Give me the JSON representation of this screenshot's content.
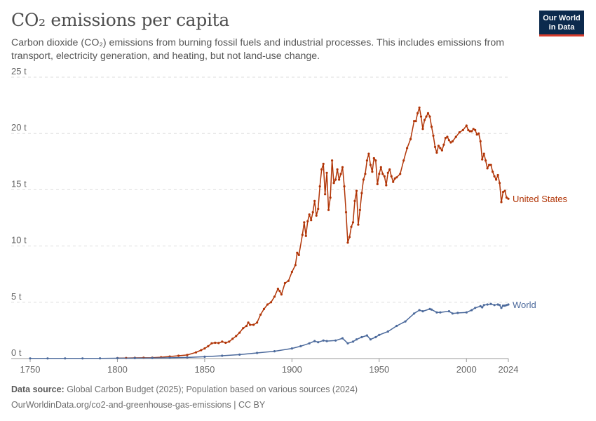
{
  "header": {
    "title": "CO₂ emissions per capita",
    "subtitle": "Carbon dioxide (CO₂) emissions from burning fossil fuels and industrial processes. This includes emissions from transport, electricity generation, and heating, but not land-use change."
  },
  "logo": {
    "line1": "Our World",
    "line2": "in Data"
  },
  "footer": {
    "source_label": "Data source:",
    "source_text": "Global Carbon Budget (2025); Population based on various sources (2024)",
    "url_line": "OurWorldinData.org/co2-and-greenhouse-gas-emissions | CC BY"
  },
  "colors": {
    "us": "#b13507",
    "world": "#4c6a9c",
    "grid": "#dddddd",
    "axis": "#999999"
  },
  "chart_data": {
    "type": "line",
    "title": "CO₂ emissions per capita",
    "xlim": [
      1750,
      2024
    ],
    "ylim": [
      0,
      25
    ],
    "grid": true,
    "y_ticks": [
      0,
      5,
      10,
      15,
      20,
      25
    ],
    "y_tick_labels": [
      "0 t",
      "5 t",
      "10 t",
      "15 t",
      "20 t",
      "25 t"
    ],
    "x_ticks": [
      1750,
      1800,
      1850,
      1900,
      1950,
      2000,
      2024
    ],
    "x_tick_labels": [
      "1750",
      "1800",
      "1850",
      "1900",
      "1950",
      "2000",
      "2024"
    ],
    "series": [
      {
        "name": "United States",
        "color": "#b13507",
        "points": [
          [
            1800,
            0.04
          ],
          [
            1805,
            0.05
          ],
          [
            1810,
            0.06
          ],
          [
            1815,
            0.07
          ],
          [
            1820,
            0.08
          ],
          [
            1825,
            0.12
          ],
          [
            1830,
            0.18
          ],
          [
            1835,
            0.25
          ],
          [
            1840,
            0.32
          ],
          [
            1845,
            0.55
          ],
          [
            1848,
            0.75
          ],
          [
            1850,
            0.9
          ],
          [
            1852,
            1.1
          ],
          [
            1854,
            1.35
          ],
          [
            1856,
            1.4
          ],
          [
            1858,
            1.38
          ],
          [
            1860,
            1.5
          ],
          [
            1862,
            1.4
          ],
          [
            1864,
            1.5
          ],
          [
            1866,
            1.75
          ],
          [
            1868,
            2.0
          ],
          [
            1870,
            2.3
          ],
          [
            1872,
            2.7
          ],
          [
            1874,
            2.9
          ],
          [
            1875,
            3.2
          ],
          [
            1876,
            3.0
          ],
          [
            1878,
            3.0
          ],
          [
            1880,
            3.2
          ],
          [
            1882,
            3.9
          ],
          [
            1884,
            4.4
          ],
          [
            1886,
            4.8
          ],
          [
            1888,
            5.0
          ],
          [
            1890,
            5.5
          ],
          [
            1892,
            6.2
          ],
          [
            1893,
            6.0
          ],
          [
            1894,
            5.7
          ],
          [
            1896,
            6.7
          ],
          [
            1898,
            6.9
          ],
          [
            1900,
            7.7
          ],
          [
            1902,
            8.3
          ],
          [
            1903,
            9.4
          ],
          [
            1904,
            9.2
          ],
          [
            1906,
            11.0
          ],
          [
            1907,
            12.1
          ],
          [
            1908,
            10.9
          ],
          [
            1909,
            12.2
          ],
          [
            1910,
            12.8
          ],
          [
            1911,
            12.3
          ],
          [
            1912,
            13.0
          ],
          [
            1913,
            14.0
          ],
          [
            1914,
            12.7
          ],
          [
            1915,
            13.3
          ],
          [
            1916,
            15.3
          ],
          [
            1917,
            16.8
          ],
          [
            1918,
            17.3
          ],
          [
            1919,
            14.6
          ],
          [
            1920,
            16.5
          ],
          [
            1921,
            13.2
          ],
          [
            1922,
            14.3
          ],
          [
            1923,
            17.6
          ],
          [
            1924,
            15.6
          ],
          [
            1925,
            15.9
          ],
          [
            1926,
            16.8
          ],
          [
            1927,
            15.9
          ],
          [
            1928,
            16.4
          ],
          [
            1929,
            17.0
          ],
          [
            1930,
            15.3
          ],
          [
            1931,
            13.0
          ],
          [
            1932,
            10.3
          ],
          [
            1933,
            10.8
          ],
          [
            1934,
            11.7
          ],
          [
            1935,
            12.1
          ],
          [
            1936,
            14.0
          ],
          [
            1937,
            14.9
          ],
          [
            1938,
            11.9
          ],
          [
            1939,
            13.2
          ],
          [
            1940,
            14.7
          ],
          [
            1941,
            15.9
          ],
          [
            1942,
            16.4
          ],
          [
            1943,
            17.6
          ],
          [
            1944,
            18.2
          ],
          [
            1945,
            17.2
          ],
          [
            1946,
            16.6
          ],
          [
            1947,
            17.8
          ],
          [
            1948,
            17.6
          ],
          [
            1949,
            15.5
          ],
          [
            1950,
            16.4
          ],
          [
            1951,
            17.0
          ],
          [
            1952,
            16.4
          ],
          [
            1953,
            16.2
          ],
          [
            1954,
            15.4
          ],
          [
            1955,
            16.5
          ],
          [
            1956,
            16.8
          ],
          [
            1957,
            16.2
          ],
          [
            1958,
            15.7
          ],
          [
            1959,
            16.0
          ],
          [
            1960,
            16.1
          ],
          [
            1962,
            16.4
          ],
          [
            1964,
            17.6
          ],
          [
            1966,
            18.7
          ],
          [
            1968,
            19.5
          ],
          [
            1970,
            21.1
          ],
          [
            1971,
            21.1
          ],
          [
            1972,
            21.8
          ],
          [
            1973,
            22.3
          ],
          [
            1974,
            21.5
          ],
          [
            1975,
            20.4
          ],
          [
            1976,
            21.2
          ],
          [
            1977,
            21.5
          ],
          [
            1978,
            21.8
          ],
          [
            1979,
            21.5
          ],
          [
            1980,
            20.6
          ],
          [
            1981,
            19.8
          ],
          [
            1982,
            18.8
          ],
          [
            1983,
            18.3
          ],
          [
            1984,
            18.9
          ],
          [
            1985,
            18.7
          ],
          [
            1986,
            18.5
          ],
          [
            1987,
            19.0
          ],
          [
            1988,
            19.6
          ],
          [
            1989,
            19.7
          ],
          [
            1990,
            19.4
          ],
          [
            1991,
            19.2
          ],
          [
            1992,
            19.3
          ],
          [
            1994,
            19.7
          ],
          [
            1996,
            20.1
          ],
          [
            1998,
            20.3
          ],
          [
            2000,
            20.7
          ],
          [
            2001,
            20.3
          ],
          [
            2002,
            20.2
          ],
          [
            2003,
            20.2
          ],
          [
            2004,
            20.4
          ],
          [
            2005,
            20.3
          ],
          [
            2006,
            19.9
          ],
          [
            2007,
            20.0
          ],
          [
            2008,
            19.3
          ],
          [
            2009,
            17.7
          ],
          [
            2010,
            18.2
          ],
          [
            2011,
            17.6
          ],
          [
            2012,
            16.9
          ],
          [
            2013,
            17.2
          ],
          [
            2014,
            17.2
          ],
          [
            2015,
            16.6
          ],
          [
            2016,
            16.2
          ],
          [
            2017,
            15.9
          ],
          [
            2018,
            16.3
          ],
          [
            2019,
            15.6
          ],
          [
            2020,
            13.9
          ],
          [
            2021,
            14.8
          ],
          [
            2022,
            14.9
          ],
          [
            2023,
            14.3
          ],
          [
            2024,
            14.2
          ]
        ]
      },
      {
        "name": "World",
        "color": "#4c6a9c",
        "points": [
          [
            1750,
            0.01
          ],
          [
            1760,
            0.01
          ],
          [
            1770,
            0.01
          ],
          [
            1780,
            0.01
          ],
          [
            1790,
            0.02
          ],
          [
            1800,
            0.03
          ],
          [
            1810,
            0.04
          ],
          [
            1820,
            0.05
          ],
          [
            1830,
            0.07
          ],
          [
            1840,
            0.1
          ],
          [
            1850,
            0.16
          ],
          [
            1860,
            0.25
          ],
          [
            1870,
            0.35
          ],
          [
            1880,
            0.5
          ],
          [
            1890,
            0.65
          ],
          [
            1900,
            0.9
          ],
          [
            1905,
            1.1
          ],
          [
            1910,
            1.35
          ],
          [
            1913,
            1.55
          ],
          [
            1915,
            1.45
          ],
          [
            1918,
            1.6
          ],
          [
            1920,
            1.55
          ],
          [
            1925,
            1.6
          ],
          [
            1929,
            1.8
          ],
          [
            1932,
            1.35
          ],
          [
            1935,
            1.5
          ],
          [
            1937,
            1.7
          ],
          [
            1940,
            1.9
          ],
          [
            1943,
            2.05
          ],
          [
            1945,
            1.7
          ],
          [
            1948,
            1.9
          ],
          [
            1950,
            2.1
          ],
          [
            1955,
            2.4
          ],
          [
            1960,
            2.9
          ],
          [
            1965,
            3.3
          ],
          [
            1970,
            4.0
          ],
          [
            1973,
            4.3
          ],
          [
            1975,
            4.2
          ],
          [
            1979,
            4.4
          ],
          [
            1980,
            4.35
          ],
          [
            1983,
            4.1
          ],
          [
            1985,
            4.1
          ],
          [
            1990,
            4.2
          ],
          [
            1992,
            4.0
          ],
          [
            1995,
            4.05
          ],
          [
            2000,
            4.1
          ],
          [
            2003,
            4.3
          ],
          [
            2005,
            4.5
          ],
          [
            2008,
            4.65
          ],
          [
            2009,
            4.55
          ],
          [
            2010,
            4.75
          ],
          [
            2012,
            4.8
          ],
          [
            2014,
            4.85
          ],
          [
            2016,
            4.75
          ],
          [
            2018,
            4.8
          ],
          [
            2019,
            4.75
          ],
          [
            2020,
            4.5
          ],
          [
            2021,
            4.7
          ],
          [
            2022,
            4.7
          ],
          [
            2023,
            4.75
          ],
          [
            2024,
            4.8
          ]
        ]
      }
    ]
  }
}
